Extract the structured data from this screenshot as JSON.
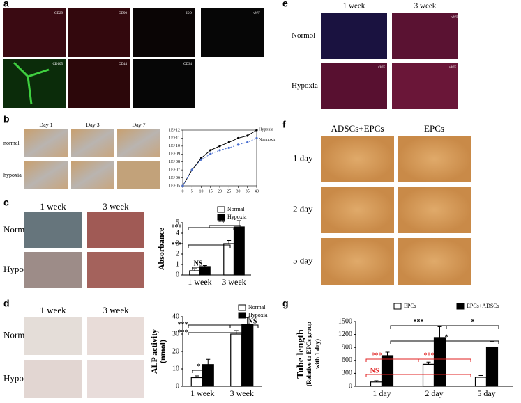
{
  "figure": {
    "a": {
      "label": "a",
      "tiles": [
        "CD29",
        "CD90",
        "ISO",
        "vWF",
        "CD105",
        "CD44",
        "CD34"
      ]
    },
    "b": {
      "label": "b",
      "columns": [
        "Day 1",
        "Day 3",
        "Day 7"
      ],
      "rows": [
        "normal",
        "hypoxia"
      ]
    },
    "c": {
      "label": "c",
      "columns": [
        "1 week",
        "3 week"
      ],
      "rows": [
        "Normal",
        "Hypoxia"
      ]
    },
    "d": {
      "label": "d",
      "columns": [
        "1 week",
        "3 week"
      ],
      "rows": [
        "Normal",
        "Hypoxia"
      ]
    },
    "e": {
      "label": "e",
      "columns": [
        "1 week",
        "3 week"
      ],
      "rows": [
        "Normol",
        "Hypoxia"
      ],
      "tiles": [
        "vWF",
        "vWF",
        "vWF"
      ]
    },
    "f": {
      "label": "f",
      "columns": [
        "ADSCs+EPCs",
        "EPCs"
      ],
      "rows": [
        "1 day",
        "2 day",
        "5 day"
      ]
    },
    "g": {
      "label": "g"
    }
  },
  "chart_data": [
    {
      "type": "line",
      "ylog": true,
      "x": [
        0,
        5,
        10,
        15,
        20,
        25,
        30,
        35,
        40
      ],
      "xlim": [
        0,
        40
      ],
      "xticks": [
        0,
        5,
        10,
        15,
        20,
        25,
        30,
        35,
        40
      ],
      "ylim": [
        100000,
        1000000000000
      ],
      "yticks": [
        {
          "value": 100000,
          "label": "1E+05"
        },
        {
          "value": 1000000,
          "label": "1E+06"
        },
        {
          "value": 10000000,
          "label": "1E+07"
        },
        {
          "value": 100000000,
          "label": "1E+08"
        },
        {
          "value": 1000000000,
          "label": "1E+09"
        },
        {
          "value": 10000000000,
          "label": "1E+10"
        },
        {
          "value": 100000000000,
          "label": "1E+11"
        },
        {
          "value": 1000000000000,
          "label": "1E+12"
        }
      ],
      "legend": "right",
      "series": [
        {
          "name": "Hypoxia",
          "color": "#000000",
          "dash": false,
          "values": [
            100000,
            10000000,
            300000000,
            3000000000,
            10000000000,
            30000000000,
            100000000000,
            200000000000,
            1000000000000
          ]
        },
        {
          "name": "Normoxia",
          "color": "#4a6fd0",
          "dash": true,
          "values": [
            100000,
            10000000,
            200000000,
            1000000000,
            3000000000,
            6000000000,
            15000000000,
            30000000000,
            100000000000
          ]
        }
      ]
    },
    {
      "type": "bar",
      "ylabel": [
        "Absorbance"
      ],
      "categories": [
        "1 week",
        "3 week"
      ],
      "ylim": [
        0,
        5
      ],
      "yticks": [
        0,
        1,
        2,
        3,
        4,
        5
      ],
      "legend": "top",
      "series": [
        {
          "name": "Normal",
          "color": "#ffffff",
          "values": [
            0.4,
            3.0
          ],
          "errors": [
            0.2,
            0.3
          ]
        },
        {
          "name": "Hypoxia",
          "color": "#000000",
          "values": [
            0.8,
            4.6
          ],
          "errors": [
            0.1,
            0.6
          ]
        }
      ],
      "annotations": [
        {
          "text": "***",
          "color": "#000000"
        },
        {
          "text": "**",
          "color": "#000000"
        },
        {
          "text": "***",
          "color": "#000000"
        },
        {
          "text": "NS",
          "color": "#000000"
        }
      ]
    },
    {
      "type": "bar",
      "ylabel": [
        "ALP activity",
        "(nmol)"
      ],
      "categories": [
        "1 week",
        "3 week"
      ],
      "ylim": [
        0,
        40
      ],
      "yticks": [
        0,
        10,
        20,
        30,
        40
      ],
      "legend": "top",
      "series": [
        {
          "name": "Normal",
          "color": "#ffffff",
          "values": [
            5,
            30
          ],
          "errors": [
            1,
            2
          ]
        },
        {
          "name": "Hypoxia",
          "color": "#000000",
          "values": [
            12.5,
            35.5
          ],
          "errors": [
            3,
            4
          ]
        }
      ],
      "annotations": [
        {
          "text": "*",
          "color": "#000000"
        },
        {
          "text": "***",
          "color": "#000000"
        },
        {
          "text": "***",
          "color": "#000000"
        },
        {
          "text": "NS",
          "color": "#000000"
        }
      ]
    },
    {
      "type": "bar",
      "ylabel": [
        "Tube length",
        "(Relative to EPCs group",
        "with 1 day)"
      ],
      "categories": [
        "1 day",
        "2 day",
        "5 day"
      ],
      "ylim": [
        0,
        1500
      ],
      "yticks": [
        0,
        300,
        600,
        900,
        1200,
        1500
      ],
      "legend": "top",
      "series": [
        {
          "name": "EPCs",
          "color": "#ffffff",
          "values": [
            100,
            510,
            210
          ],
          "errors": [
            30,
            50,
            40
          ]
        },
        {
          "name": "EPCs+ADSCs",
          "color": "#000000",
          "values": [
            710,
            1130,
            910
          ],
          "errors": [
            80,
            250,
            120
          ]
        }
      ],
      "annotations": [
        {
          "text": "***",
          "color": "#000000"
        },
        {
          "text": "*",
          "color": "#000000"
        },
        {
          "text": "*",
          "color": "#000000"
        },
        {
          "text": "***",
          "color": "#e02020"
        },
        {
          "text": "***",
          "color": "#e02020"
        },
        {
          "text": "NS",
          "color": "#e02020"
        }
      ]
    }
  ]
}
